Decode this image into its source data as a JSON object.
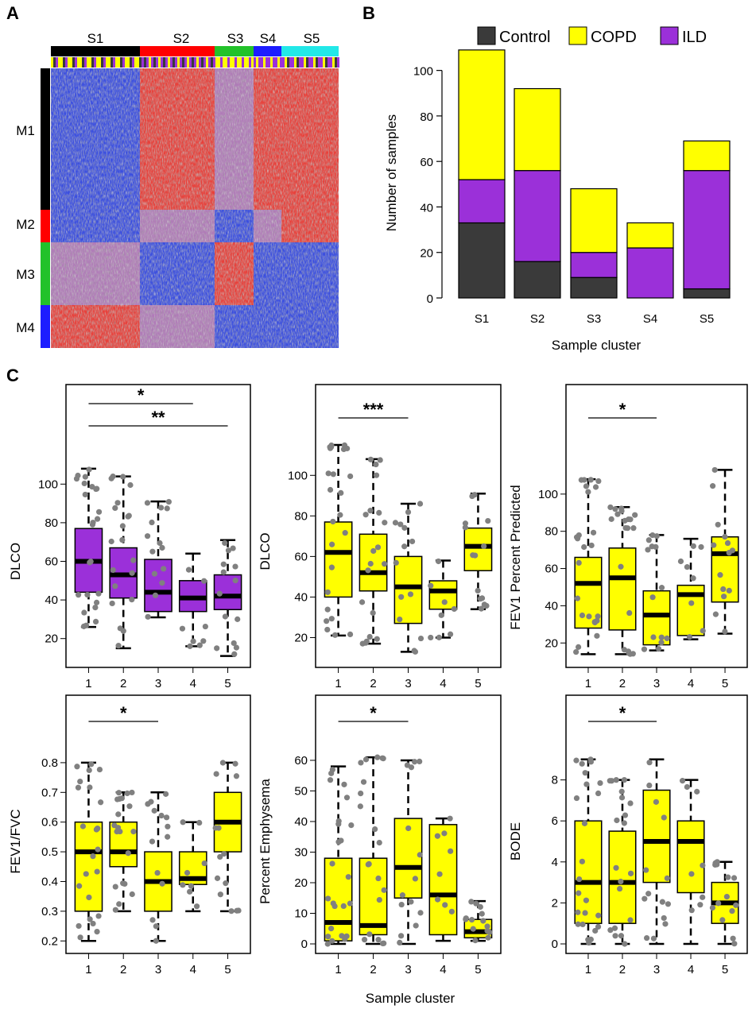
{
  "panels": {
    "A": "A",
    "B": "B",
    "C": "C"
  },
  "colors": {
    "control": "#3a3a3a",
    "copd": "#ffff00",
    "ild": "#9b30d9",
    "grey_point": "#808080",
    "S1": "#000000",
    "S2": "#ff0000",
    "S3": "#22c22a",
    "S4": "#1d1dff",
    "S5": "#22e8e8",
    "M1": "#000000",
    "M2": "#ff0000",
    "M3": "#22c22a",
    "M4": "#1d1dff"
  },
  "heatmap": {
    "sample_clusters": [
      "S1",
      "S2",
      "S3",
      "S4",
      "S5"
    ],
    "module_labels": [
      "M1",
      "M2",
      "M3",
      "M4"
    ]
  },
  "shared": {
    "bottom_xlabel": "Sample cluster"
  },
  "chart_data": [
    {
      "id": "B",
      "type": "bar",
      "stacked": true,
      "categories": [
        "S1",
        "S2",
        "S3",
        "S4",
        "S5"
      ],
      "series": [
        {
          "name": "Control",
          "color": "#3a3a3a",
          "values": [
            33,
            16,
            9,
            0,
            4
          ]
        },
        {
          "name": "ILD",
          "color": "#9b30d9",
          "values": [
            19,
            40,
            11,
            22,
            52
          ]
        },
        {
          "name": "COPD",
          "color": "#ffff00",
          "values": [
            57,
            36,
            28,
            11,
            13
          ]
        }
      ],
      "legend_order": [
        "Control",
        "COPD",
        "ILD"
      ],
      "legend_position": "top",
      "xlabel": "Sample cluster",
      "ylabel": "Number of samples",
      "ylim": [
        0,
        110
      ],
      "yticks": [
        0,
        20,
        40,
        60,
        80,
        100
      ]
    },
    {
      "id": "C1",
      "type": "box",
      "fill": "#9b30d9",
      "categories": [
        "1",
        "2",
        "3",
        "4",
        "5"
      ],
      "ylabel": "DLCO",
      "ylim": [
        10,
        110
      ],
      "yticks": [
        20,
        40,
        60,
        80,
        100
      ],
      "boxes": [
        {
          "min": 26,
          "q1": 44,
          "median": 60,
          "q3": 77,
          "max": 108
        },
        {
          "min": 15,
          "q1": 41,
          "median": 53,
          "q3": 67,
          "max": 104
        },
        {
          "min": 31,
          "q1": 34,
          "median": 44,
          "q3": 61,
          "max": 91
        },
        {
          "min": 16,
          "q1": 34,
          "median": 41,
          "q3": 50,
          "max": 64
        },
        {
          "min": 11,
          "q1": 35,
          "median": 42,
          "q3": 53,
          "max": 71
        }
      ],
      "brackets": [
        {
          "from": 1,
          "to": 4,
          "label": "*"
        },
        {
          "from": 1,
          "to": 5,
          "label": "**"
        }
      ]
    },
    {
      "id": "C2",
      "type": "box",
      "fill": "#ffff00",
      "categories": [
        "1",
        "2",
        "3",
        "4",
        "5"
      ],
      "ylabel": "DLCO",
      "ylim": [
        10,
        115
      ],
      "yticks": [
        20,
        40,
        60,
        80,
        100
      ],
      "boxes": [
        {
          "min": 21,
          "q1": 40,
          "median": 62,
          "q3": 77,
          "max": 115
        },
        {
          "min": 17,
          "q1": 43,
          "median": 52,
          "q3": 71,
          "max": 108
        },
        {
          "min": 13,
          "q1": 27,
          "median": 45,
          "q3": 60,
          "max": 86
        },
        {
          "min": 20,
          "q1": 34,
          "median": 43,
          "q3": 48,
          "max": 58
        },
        {
          "min": 34,
          "q1": 53,
          "median": 65,
          "q3": 74,
          "max": 91
        }
      ],
      "brackets": [
        {
          "from": 1,
          "to": 3,
          "label": "***"
        }
      ]
    },
    {
      "id": "C3",
      "type": "box",
      "fill": "#ffff00",
      "categories": [
        "1",
        "2",
        "3",
        "4",
        "5"
      ],
      "ylabel": "FEV1 Percent Predicted",
      "ylim": [
        12,
        120
      ],
      "yticks": [
        20,
        40,
        60,
        80,
        100
      ],
      "boxes": [
        {
          "min": 14,
          "q1": 28,
          "median": 52,
          "q3": 66,
          "max": 108
        },
        {
          "min": 14,
          "q1": 27,
          "median": 55,
          "q3": 71,
          "max": 93
        },
        {
          "min": 16,
          "q1": 19,
          "median": 35,
          "q3": 48,
          "max": 78
        },
        {
          "min": 22,
          "q1": 24,
          "median": 46,
          "q3": 51,
          "max": 76
        },
        {
          "min": 25,
          "q1": 42,
          "median": 68,
          "q3": 77,
          "max": 113
        }
      ],
      "brackets": [
        {
          "from": 1,
          "to": 3,
          "label": "*"
        }
      ]
    },
    {
      "id": "C4",
      "type": "box",
      "fill": "#ffff00",
      "categories": [
        "1",
        "2",
        "3",
        "4",
        "5"
      ],
      "ylabel": "FEV1/FVC",
      "ylim": [
        0.19,
        0.88
      ],
      "yticks": [
        0.2,
        0.3,
        0.4,
        0.5,
        0.6,
        0.7,
        0.8
      ],
      "boxes": [
        {
          "min": 0.2,
          "q1": 0.3,
          "median": 0.5,
          "q3": 0.6,
          "max": 0.8
        },
        {
          "min": 0.3,
          "q1": 0.45,
          "median": 0.5,
          "q3": 0.6,
          "max": 0.7
        },
        {
          "min": 0.2,
          "q1": 0.3,
          "median": 0.4,
          "q3": 0.5,
          "max": 0.7
        },
        {
          "min": 0.3,
          "q1": 0.39,
          "median": 0.41,
          "q3": 0.5,
          "max": 0.6
        },
        {
          "min": 0.3,
          "q1": 0.5,
          "median": 0.6,
          "q3": 0.7,
          "max": 0.8
        }
      ],
      "brackets": [
        {
          "from": 1,
          "to": 3,
          "label": "*"
        }
      ]
    },
    {
      "id": "C5",
      "type": "box",
      "fill": "#ffff00",
      "categories": [
        "1",
        "2",
        "3",
        "4",
        "5"
      ],
      "ylabel": "Percent Emphysema",
      "ylim": [
        0,
        67
      ],
      "yticks": [
        0,
        10,
        20,
        30,
        40,
        50,
        60
      ],
      "boxes": [
        {
          "min": 0,
          "q1": 1,
          "median": 7,
          "q3": 28,
          "max": 58
        },
        {
          "min": 0,
          "q1": 3,
          "median": 6,
          "q3": 28,
          "max": 61
        },
        {
          "min": 0,
          "q1": 15,
          "median": 25,
          "q3": 41,
          "max": 60
        },
        {
          "min": 1,
          "q1": 3,
          "median": 16,
          "q3": 39,
          "max": 41
        },
        {
          "min": 1,
          "q1": 2,
          "median": 4,
          "q3": 8,
          "max": 14
        }
      ],
      "brackets": [
        {
          "from": 1,
          "to": 3,
          "label": "*"
        }
      ]
    },
    {
      "id": "C6",
      "type": "box",
      "fill": "#ffff00",
      "categories": [
        "1",
        "2",
        "3",
        "4",
        "5"
      ],
      "ylabel": "BODE",
      "ylim": [
        0,
        10
      ],
      "yticks": [
        0,
        2,
        4,
        6,
        8
      ],
      "boxes": [
        {
          "min": 0,
          "q1": 1,
          "median": 3,
          "q3": 6,
          "max": 9
        },
        {
          "min": 0,
          "q1": 1,
          "median": 3,
          "q3": 5.5,
          "max": 8
        },
        {
          "min": 0,
          "q1": 3,
          "median": 5,
          "q3": 7.5,
          "max": 9
        },
        {
          "min": 0,
          "q1": 2.5,
          "median": 5,
          "q3": 6,
          "max": 8
        },
        {
          "min": 0,
          "q1": 1,
          "median": 2,
          "q3": 3,
          "max": 4
        }
      ],
      "brackets": [
        {
          "from": 1,
          "to": 3,
          "label": "*"
        }
      ]
    }
  ]
}
